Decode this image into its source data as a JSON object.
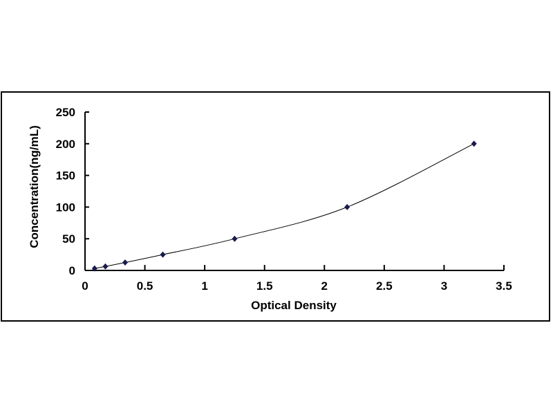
{
  "chart_data": {
    "type": "scatter",
    "xlabel": "Optical Density",
    "ylabel": "Concentration(ng/mL)",
    "xlim": [
      0,
      3.5
    ],
    "ylim": [
      0,
      250
    ],
    "xticks": [
      "0",
      "0.5",
      "1",
      "1.5",
      "2",
      "2.5",
      "3",
      "3.5"
    ],
    "yticks": [
      "0",
      "50",
      "100",
      "150",
      "200",
      "250"
    ],
    "grid": false,
    "series": [
      {
        "x": [
          0.08,
          0.17,
          0.335,
          0.65,
          1.25,
          2.19,
          3.25
        ],
        "y": [
          3.125,
          6.25,
          12.5,
          25,
          50,
          100,
          200
        ],
        "marker": "diamond",
        "color": "#1a1a4e",
        "trendline": "smooth curve"
      }
    ]
  }
}
